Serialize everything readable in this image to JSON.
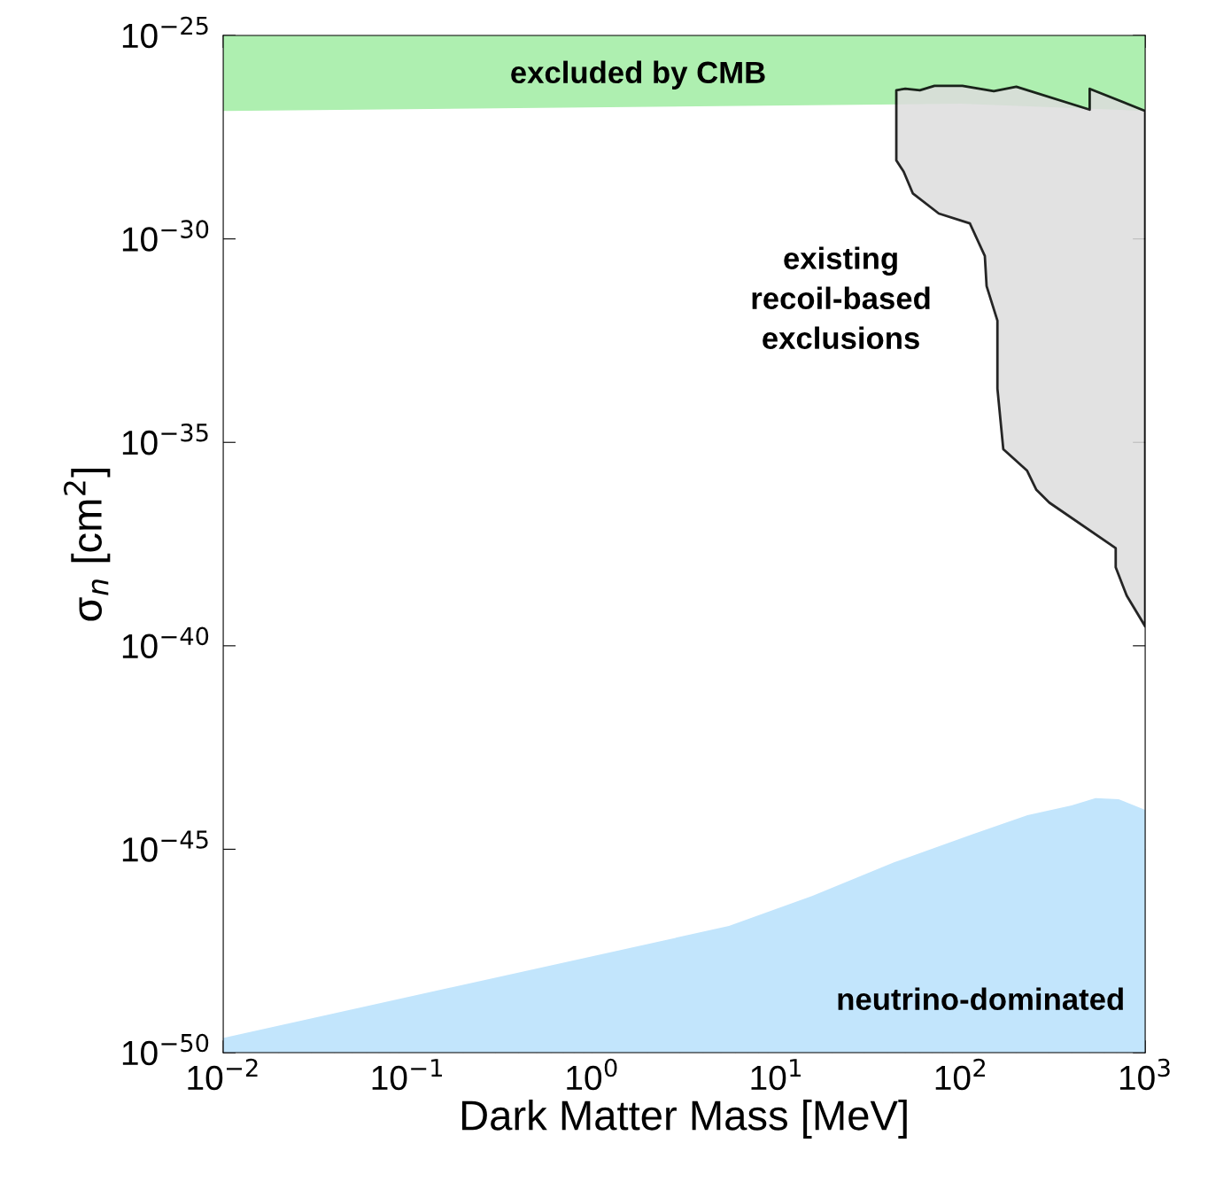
{
  "chart_data": {
    "type": "area",
    "xlabel": "Dark Matter Mass [MeV]",
    "ylabel": "σ$_{n}$ [cm$^{2}$]",
    "log": "xy",
    "grid": false,
    "xlim": [
      0.01,
      1000
    ],
    "ylim": [
      1e-50,
      1e-25
    ],
    "xticks": [
      {
        "value": 0.01,
        "label": "10$^{−2}$"
      },
      {
        "value": 0.1,
        "label": "10$^{−1}$"
      },
      {
        "value": 1,
        "label": "10$^{0}$"
      },
      {
        "value": 10,
        "label": "10$^{1}$"
      },
      {
        "value": 100,
        "label": "10$^{2}$"
      },
      {
        "value": 1000,
        "label": "10$^{3}$"
      }
    ],
    "yticks": [
      {
        "value": 1e-50,
        "label": "10$^{−50}$"
      },
      {
        "value": 1e-45,
        "label": "10$^{−45}$"
      },
      {
        "value": 1e-40,
        "label": "10$^{−40}$"
      },
      {
        "value": 1e-35,
        "label": "10$^{−35}$"
      },
      {
        "value": 1e-30,
        "label": "10$^{−30}$"
      },
      {
        "value": 1e-25,
        "label": "10$^{−25}$"
      }
    ],
    "series": [
      {
        "color": "#aeefb0",
        "x": [
          0.01,
          100,
          1000,
          1000,
          0.01
        ],
        "values": [
          1.4e-27,
          2.1e-27,
          1.4e-27,
          1e-25,
          1e-25
        ]
      },
      {
        "color": "#c2e5fc",
        "x": [
          0.01,
          5.53,
          15.6,
          43.7,
          115,
          230,
          399,
          538,
          718,
          1000,
          1000,
          0.01
        ],
        "values": [
          2.3e-50,
          1.3e-47,
          7.1e-47,
          4.8e-46,
          2.3e-45,
          6.9e-45,
          1.2e-44,
          1.8e-44,
          1.7e-44,
          9.3e-45,
          1e-50,
          1e-50
        ]
      },
      {
        "color": "#dddddd",
        "line_style": "solid",
        "x": [
          44.7,
          50,
          60,
          72,
          102,
          151,
          200,
          500,
          500,
          1000,
          1000,
          794,
          692,
          692,
          302,
          257,
          229,
          170,
          158,
          158,
          138,
          135,
          112,
          76,
          55,
          49,
          44.7
        ],
        "values": [
          4.5e-27,
          4.9e-27,
          4.5e-27,
          5.8e-27,
          5.8e-27,
          4.3e-27,
          5.5e-27,
          1.5e-27,
          4.9e-27,
          1.4e-27,
          3e-40,
          1.7e-39,
          8.5e-39,
          2.5e-38,
          3.3e-37,
          6.8e-37,
          2e-36,
          6.8e-36,
          2.1e-34,
          9.8e-33,
          6.9e-32,
          3.8e-31,
          2.4e-30,
          4.2e-30,
          1.3e-29,
          4.5e-29,
          8.5e-29
        ]
      }
    ],
    "annotations": [
      "excluded by CMB",
      "existing\nrecoil-based\nexclusions",
      "neutrino-dominated"
    ]
  }
}
